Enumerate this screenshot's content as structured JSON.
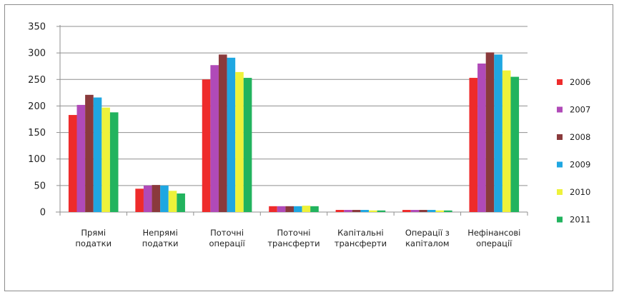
{
  "chart_data": {
    "type": "bar",
    "categories": [
      [
        "Прямі",
        "податки"
      ],
      [
        "Непрямі",
        "податки"
      ],
      [
        "Поточні",
        "операції"
      ],
      [
        "Поточні",
        "трансферти"
      ],
      [
        "Капітальні",
        "трансферти"
      ],
      [
        "Операції з",
        "капіталом"
      ],
      [
        "Нефінансові",
        "операції"
      ]
    ],
    "series": [
      {
        "name": "2006",
        "color": "#ee2b2b",
        "values": [
          183,
          44,
          250,
          11,
          4,
          4,
          253
        ]
      },
      {
        "name": "2007",
        "color": "#b04ab8",
        "values": [
          202,
          50,
          277,
          11,
          4,
          4,
          280
        ]
      },
      {
        "name": "2008",
        "color": "#8a3a3c",
        "values": [
          221,
          51,
          297,
          11,
          4,
          4,
          301
        ]
      },
      {
        "name": "2009",
        "color": "#1fa7e2",
        "values": [
          216,
          50,
          291,
          11,
          4,
          4,
          297
        ]
      },
      {
        "name": "2010",
        "color": "#eef23a",
        "values": [
          197,
          40,
          264,
          12,
          3,
          3,
          267
        ]
      },
      {
        "name": "2011",
        "color": "#22b35e",
        "values": [
          188,
          35,
          253,
          11,
          3,
          3,
          255
        ]
      }
    ],
    "yticks": [
      "350",
      "300",
      "250",
      "200",
      "150",
      "100",
      "50",
      "0"
    ],
    "ylim": [
      0,
      350
    ],
    "grid": true,
    "legend": "right"
  }
}
